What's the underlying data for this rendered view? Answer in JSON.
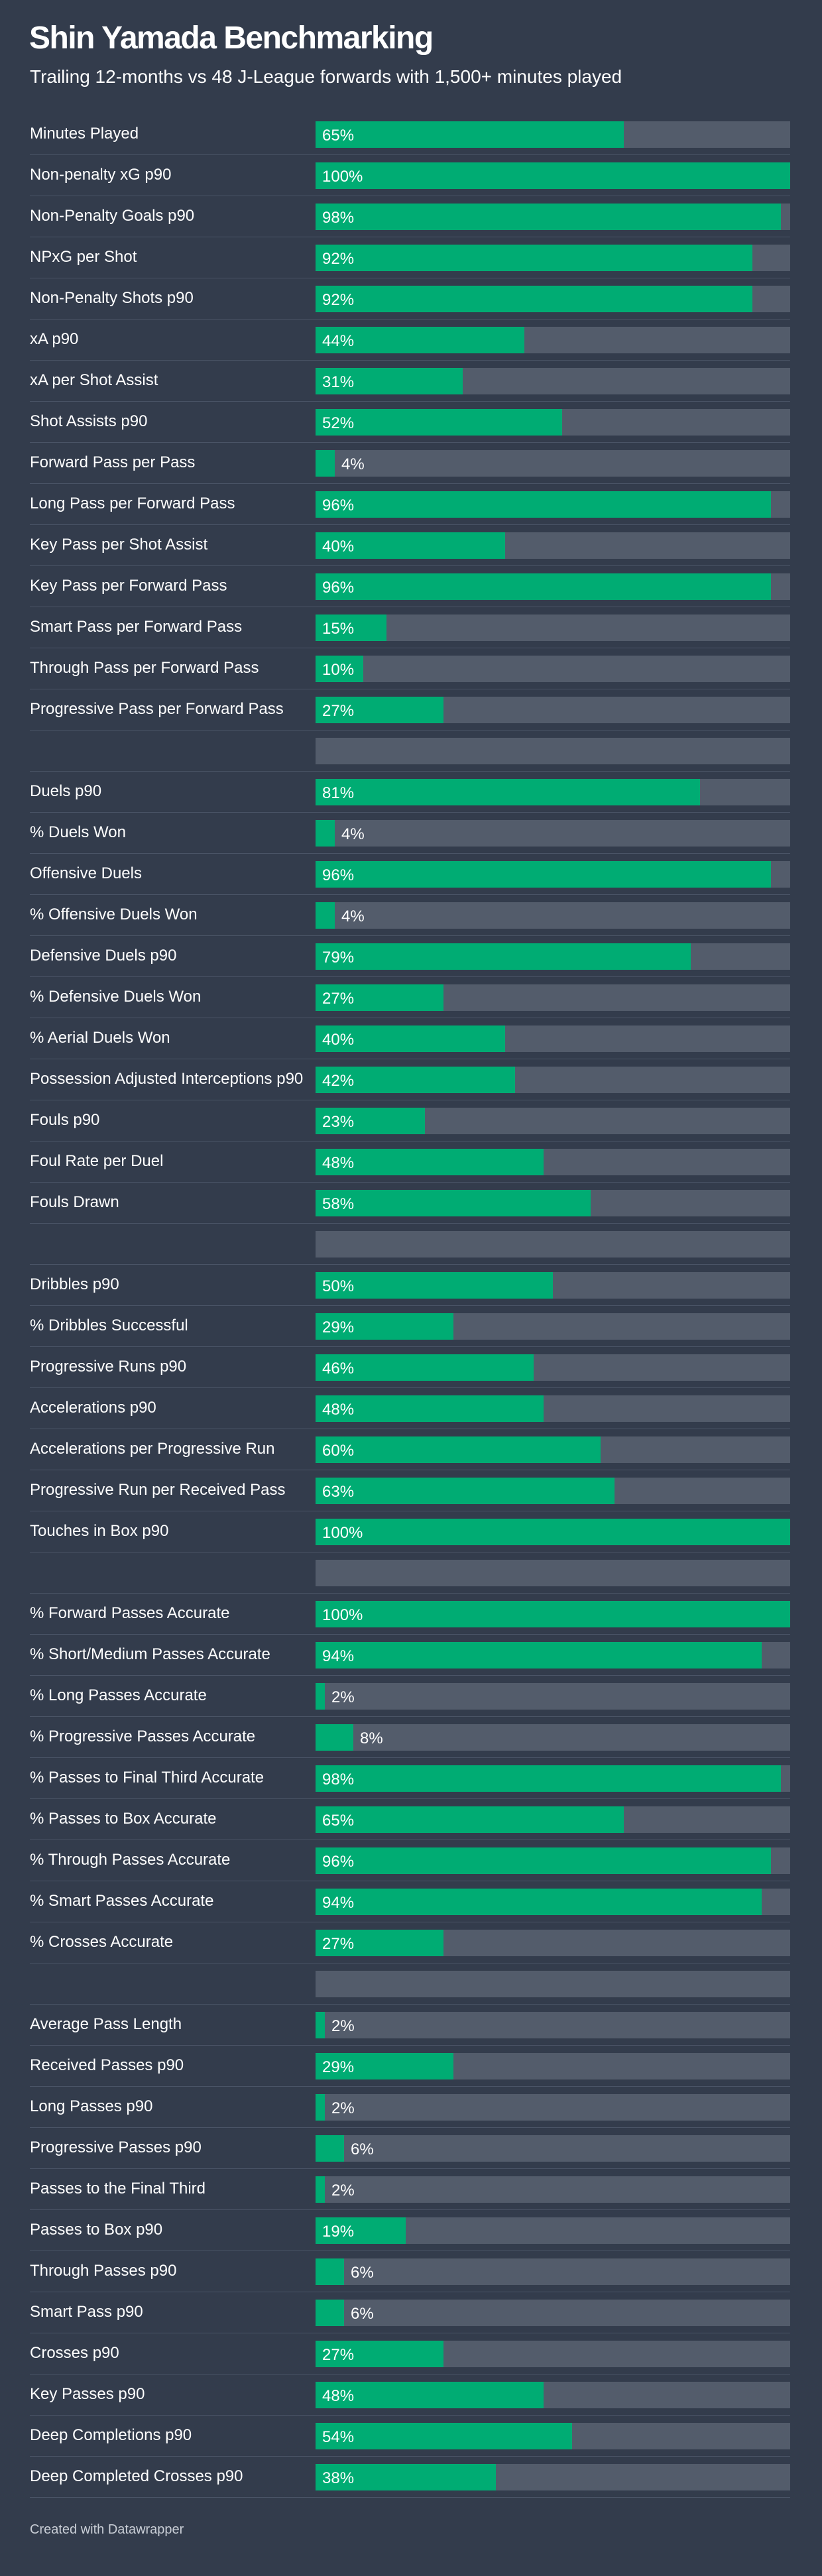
{
  "title": "Shin Yamada Benchmarking",
  "subtitle": "Trailing 12-months vs 48 J-League forwards with 1,500+ minutes played",
  "footer": "Created with Datawrapper",
  "colors": {
    "background": "#333c4c",
    "bar": "#00ac73",
    "track": "#535c6b"
  },
  "chart_data": {
    "type": "bar",
    "orientation": "horizontal",
    "value_format": "percent",
    "xlim": [
      0,
      100
    ],
    "categories": [
      "Minutes Played",
      "Non-penalty xG p90",
      "Non-Penalty Goals p90",
      "NPxG per Shot",
      "Non-Penalty Shots p90",
      "xA p90",
      "xA per Shot Assist",
      "Shot Assists p90",
      "Forward Pass per Pass",
      "Long Pass per Forward Pass",
      "Key Pass per Shot Assist",
      "Key Pass per Forward Pass",
      "Smart Pass per Forward Pass",
      "Through Pass per Forward Pass",
      "Progressive Pass per Forward Pass",
      "",
      "Duels p90",
      "% Duels Won",
      "Offensive Duels",
      "% Offensive Duels Won",
      "Defensive Duels p90",
      "% Defensive Duels Won",
      "% Aerial Duels Won",
      "Possession Adjusted Interceptions p90",
      "Fouls p90",
      "Foul Rate per Duel",
      "Fouls Drawn",
      "",
      "Dribbles p90",
      "% Dribbles Successful",
      "Progressive Runs p90",
      "Accelerations p90",
      "Accelerations per Progressive Run",
      "Progressive Run per Received Pass",
      "Touches in Box p90",
      "",
      "% Forward Passes Accurate",
      "% Short/Medium Passes Accurate",
      "% Long Passes Accurate",
      "% Progressive Passes Accurate",
      "% Passes to Final Third Accurate",
      "% Passes to Box Accurate",
      "% Through Passes Accurate",
      "% Smart Passes Accurate",
      "% Crosses Accurate",
      "",
      "Average Pass Length",
      "Received Passes p90",
      "Long Passes p90",
      "Progressive Passes p90",
      "Passes to the Final Third",
      "Passes to Box p90",
      "Through Passes p90",
      "Smart Pass p90",
      "Crosses p90",
      "Key Passes p90",
      "Deep Completions p90",
      "Deep Completed Crosses p90"
    ],
    "values": [
      65,
      100,
      98,
      92,
      92,
      44,
      31,
      52,
      4,
      96,
      40,
      96,
      15,
      10,
      27,
      null,
      81,
      4,
      96,
      4,
      79,
      27,
      40,
      42,
      23,
      48,
      58,
      null,
      50,
      29,
      46,
      48,
      60,
      63,
      100,
      null,
      100,
      94,
      2,
      8,
      98,
      65,
      96,
      94,
      27,
      null,
      2,
      29,
      2,
      6,
      2,
      19,
      6,
      6,
      27,
      48,
      54,
      38
    ]
  }
}
